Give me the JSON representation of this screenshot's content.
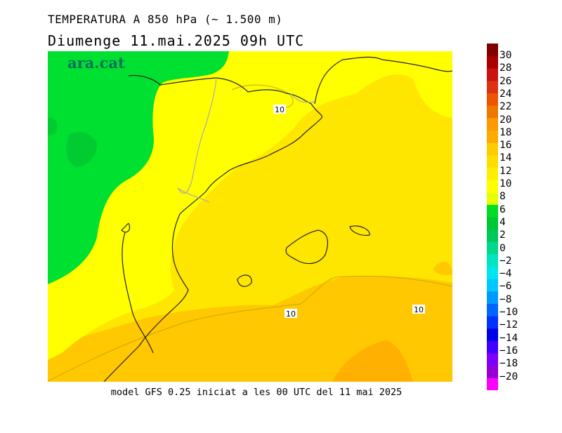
{
  "title_line1": "TEMPERATURA A 850 hPa (~ 1.500 m)",
  "title_line2": "Diumenge  11.mai.2025 09h UTC",
  "logo_text": "ara.cat",
  "footer": "model GFS 0.25 iniciat a les 00 UTC del 11 mai 2025",
  "contour_labels": [
    "10",
    "10",
    "10"
  ],
  "legend": {
    "ticks": [
      "30",
      "28",
      "26",
      "24",
      "22",
      "20",
      "18",
      "16",
      "14",
      "12",
      "10",
      "8",
      "6",
      "4",
      "2",
      "0",
      "−2",
      "−4",
      "−6",
      "−8",
      "−10",
      "−12",
      "−14",
      "−16",
      "−18",
      "−20"
    ],
    "colors": [
      "#ff00ff",
      "#9400d3",
      "#7d00ff",
      "#4000ff",
      "#0000e6",
      "#0033ff",
      "#0066ff",
      "#0099ff",
      "#00c8ff",
      "#00e5ee",
      "#00e5bf",
      "#00d88c",
      "#00c95a",
      "#00c832",
      "#00dd22",
      "#e6ff00",
      "#ffff00",
      "#ffee00",
      "#ffdd00",
      "#ffcc00",
      "#ffaa00",
      "#ff9900",
      "#ee7700",
      "#ee5500",
      "#dd3311",
      "#cc1111",
      "#aa0000",
      "#800000"
    ]
  },
  "colors": {
    "green": "#00e030",
    "yellow": "#ffff00",
    "yellow2": "#ffe600",
    "orange": "#ffc800",
    "orange2": "#ffb000"
  }
}
